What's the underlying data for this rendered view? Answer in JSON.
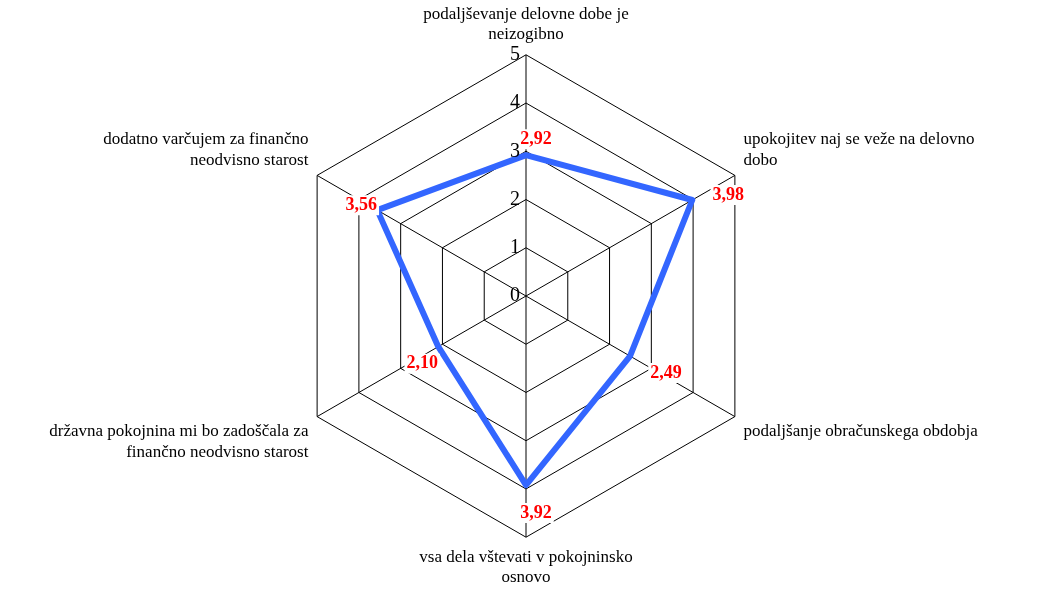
{
  "chart_data": {
    "type": "radar",
    "categories": [
      "podaljševanje delovne dobe je neizogibno",
      "upokojitev naj se veže na delovno dobo",
      "podaljšanje obračunskega obdobja",
      "vsa dela vštevati v pokojninsko osnovo",
      "državna pokojnina mi bo zadoščala za finančno neodvisno starost",
      "dodatno varčujem za finančno neodvisno starost"
    ],
    "series": [
      {
        "color": "#3366ff",
        "values": [
          2.92,
          3.98,
          2.49,
          3.92,
          2.1,
          3.56
        ],
        "value_labels": [
          "2,92",
          "3,98",
          "2,49",
          "3,92",
          "2,10",
          "3,56"
        ]
      }
    ],
    "ylim": [
      0,
      5
    ],
    "yticks": [
      0,
      1,
      2,
      3,
      4,
      5
    ],
    "grid": true,
    "legend": false,
    "marker": "none"
  }
}
